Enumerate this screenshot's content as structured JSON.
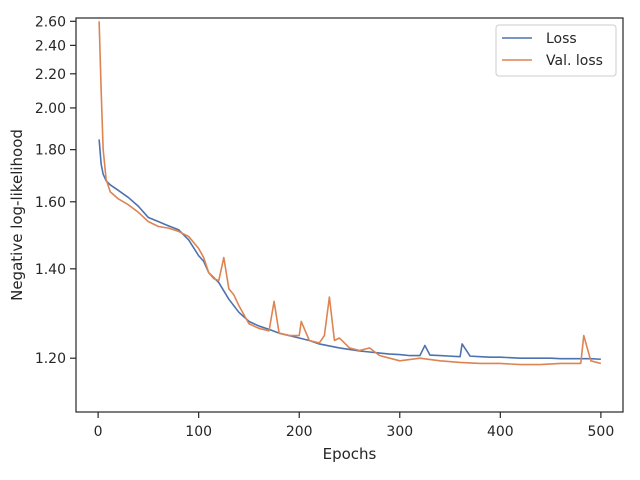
{
  "chart_data": {
    "type": "line",
    "xlabel": "Epochs",
    "ylabel": "Negative log-likelihood",
    "xlim": [
      -22,
      522
    ],
    "ylim": [
      1.105,
      2.63
    ],
    "y_scale": "reciprocal",
    "grid": false,
    "legend_placement": "top-right",
    "x_ticks": [
      0,
      100,
      200,
      300,
      400,
      500
    ],
    "y_ticks": [
      1.2,
      1.4,
      1.6,
      1.8,
      2.0,
      2.2,
      2.4,
      2.6
    ],
    "y_tick_labels": [
      "1.20",
      "1.40",
      "1.60",
      "1.80",
      "2.00",
      "2.20",
      "2.40",
      "2.60"
    ],
    "series": [
      {
        "name": "Loss",
        "color": "#4c72b0",
        "x": [
          1,
          3,
          5,
          8,
          12,
          20,
          30,
          40,
          50,
          60,
          70,
          80,
          90,
          100,
          105,
          110,
          120,
          130,
          140,
          150,
          160,
          170,
          180,
          190,
          200,
          210,
          220,
          230,
          240,
          250,
          260,
          270,
          280,
          290,
          300,
          310,
          320,
          325,
          330,
          340,
          350,
          360,
          362,
          370,
          380,
          390,
          400,
          410,
          420,
          430,
          440,
          450,
          460,
          470,
          480,
          490,
          500
        ],
        "y": [
          1.845,
          1.74,
          1.7,
          1.675,
          1.66,
          1.64,
          1.615,
          1.585,
          1.548,
          1.535,
          1.522,
          1.51,
          1.48,
          1.435,
          1.42,
          1.39,
          1.365,
          1.325,
          1.295,
          1.275,
          1.265,
          1.258,
          1.25,
          1.245,
          1.24,
          1.235,
          1.228,
          1.224,
          1.22,
          1.217,
          1.214,
          1.212,
          1.21,
          1.208,
          1.207,
          1.205,
          1.205,
          1.225,
          1.206,
          1.205,
          1.204,
          1.203,
          1.228,
          1.204,
          1.203,
          1.202,
          1.202,
          1.201,
          1.2,
          1.2,
          1.2,
          1.2,
          1.199,
          1.199,
          1.199,
          1.199,
          1.198
        ]
      },
      {
        "name": "Val. loss",
        "color": "#dd8452",
        "x": [
          1,
          3,
          5,
          8,
          12,
          20,
          30,
          40,
          50,
          60,
          70,
          80,
          90,
          100,
          105,
          110,
          115,
          120,
          125,
          130,
          135,
          140,
          150,
          160,
          170,
          175,
          180,
          190,
          200,
          202,
          210,
          220,
          225,
          230,
          235,
          240,
          250,
          260,
          270,
          280,
          290,
          300,
          320,
          340,
          360,
          380,
          400,
          420,
          440,
          460,
          480,
          483,
          490,
          500
        ],
        "y": [
          2.6,
          2.1,
          1.8,
          1.68,
          1.635,
          1.61,
          1.59,
          1.565,
          1.535,
          1.52,
          1.515,
          1.505,
          1.49,
          1.455,
          1.43,
          1.39,
          1.375,
          1.37,
          1.43,
          1.35,
          1.335,
          1.31,
          1.27,
          1.26,
          1.255,
          1.32,
          1.25,
          1.245,
          1.245,
          1.275,
          1.235,
          1.23,
          1.245,
          1.33,
          1.235,
          1.24,
          1.22,
          1.215,
          1.22,
          1.205,
          1.2,
          1.195,
          1.2,
          1.195,
          1.192,
          1.19,
          1.19,
          1.188,
          1.188,
          1.19,
          1.19,
          1.245,
          1.195,
          1.19
        ]
      }
    ]
  }
}
